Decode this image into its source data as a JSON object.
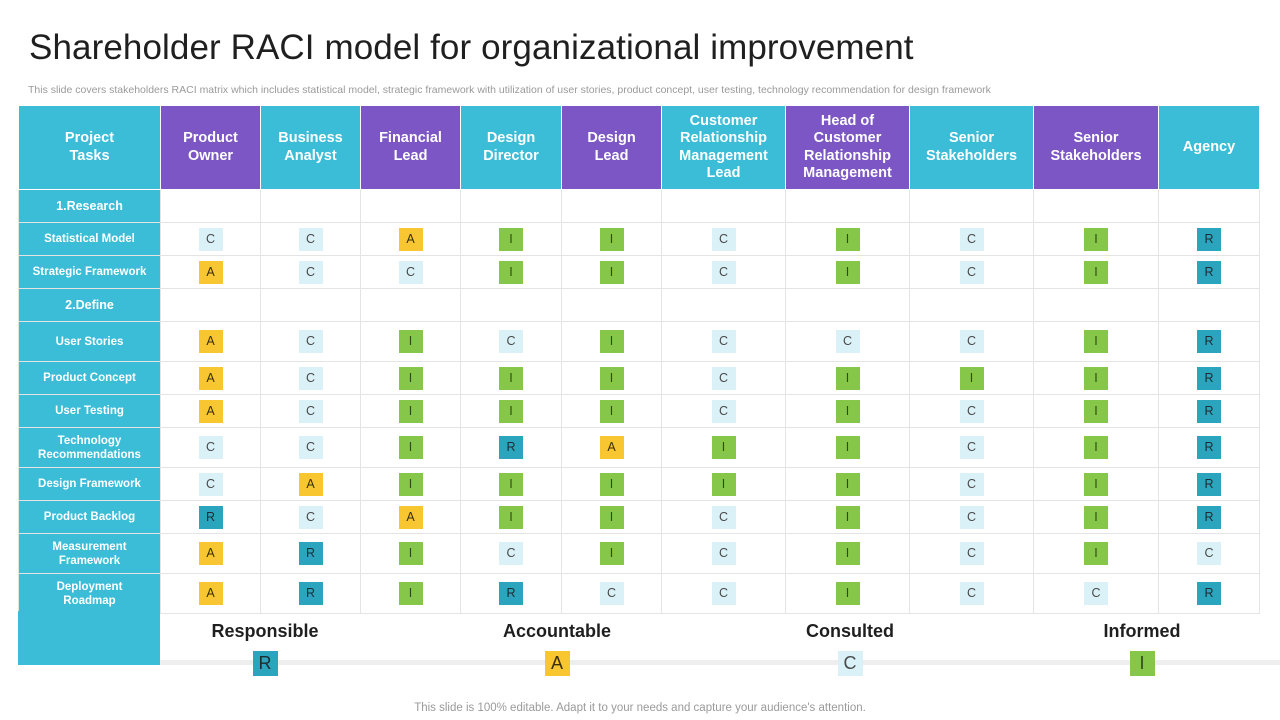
{
  "title": "Shareholder RACI model for organizational improvement",
  "subtitle": "This slide covers stakeholders RACI matrix which includes statistical model, strategic framework with utilization of user stories, product concept, user testing, technology recommendation for design framework",
  "table": {
    "task_header": "Project\nTasks",
    "roles": [
      {
        "label": "Product\nOwner",
        "color": "purple"
      },
      {
        "label": "Business\nAnalyst",
        "color": "cyan"
      },
      {
        "label": "Financial\nLead",
        "color": "purple"
      },
      {
        "label": "Design\nDirector",
        "color": "cyan"
      },
      {
        "label": "Design\nLead",
        "color": "purple"
      },
      {
        "label": "Customer\nRelationship\nManagement\nLead",
        "color": "cyan"
      },
      {
        "label": "Head of\nCustomer\nRelationship\nManagement",
        "color": "purple"
      },
      {
        "label": "Senior\nStakeholders",
        "color": "cyan"
      },
      {
        "label": "Senior\nStakeholders",
        "color": "purple"
      },
      {
        "label": "Agency",
        "color": "cyan"
      }
    ],
    "rows": [
      {
        "type": "section",
        "label": "1.Research"
      },
      {
        "type": "task",
        "label": "Statistical Model",
        "values": [
          "C",
          "C",
          "A",
          "I",
          "I",
          "C",
          "I",
          "C",
          "I",
          "R"
        ]
      },
      {
        "type": "task",
        "label": "Strategic Framework",
        "values": [
          "A",
          "C",
          "C",
          "I",
          "I",
          "C",
          "I",
          "C",
          "I",
          "R"
        ]
      },
      {
        "type": "section",
        "label": "2.Define"
      },
      {
        "type": "task",
        "label": "User Stories",
        "values": [
          "A",
          "C",
          "I",
          "C",
          "I",
          "C",
          "C",
          "C",
          "I",
          "R"
        ],
        "tall": true
      },
      {
        "type": "task",
        "label": "Product Concept",
        "values": [
          "A",
          "C",
          "I",
          "I",
          "I",
          "C",
          "I",
          "I",
          "I",
          "R"
        ]
      },
      {
        "type": "task",
        "label": "User Testing",
        "values": [
          "A",
          "C",
          "I",
          "I",
          "I",
          "C",
          "I",
          "C",
          "I",
          "R"
        ]
      },
      {
        "type": "task",
        "label": "Technology\nRecommendations",
        "values": [
          "C",
          "C",
          "I",
          "R",
          "A",
          "I",
          "I",
          "C",
          "I",
          "R"
        ],
        "tall": true
      },
      {
        "type": "task",
        "label": "Design Framework",
        "values": [
          "C",
          "A",
          "I",
          "I",
          "I",
          "I",
          "I",
          "C",
          "I",
          "R"
        ]
      },
      {
        "type": "task",
        "label": "Product Backlog",
        "values": [
          "R",
          "C",
          "A",
          "I",
          "I",
          "C",
          "I",
          "C",
          "I",
          "R"
        ]
      },
      {
        "type": "task",
        "label": "Measurement\nFramework",
        "values": [
          "A",
          "R",
          "I",
          "C",
          "I",
          "C",
          "I",
          "C",
          "I",
          "C"
        ],
        "tall": true
      },
      {
        "type": "task",
        "label": "Deployment\nRoadmap",
        "values": [
          "A",
          "R",
          "I",
          "R",
          "C",
          "C",
          "I",
          "C",
          "C",
          "R"
        ],
        "tall": true
      }
    ]
  },
  "legend": [
    {
      "label": "Responsible",
      "code": "R"
    },
    {
      "label": "Accountable",
      "code": "A"
    },
    {
      "label": "Consulted",
      "code": "C"
    },
    {
      "label": "Informed",
      "code": "I"
    }
  ],
  "footer": "This slide is 100% editable. Adapt it to your needs and capture your audience's attention."
}
